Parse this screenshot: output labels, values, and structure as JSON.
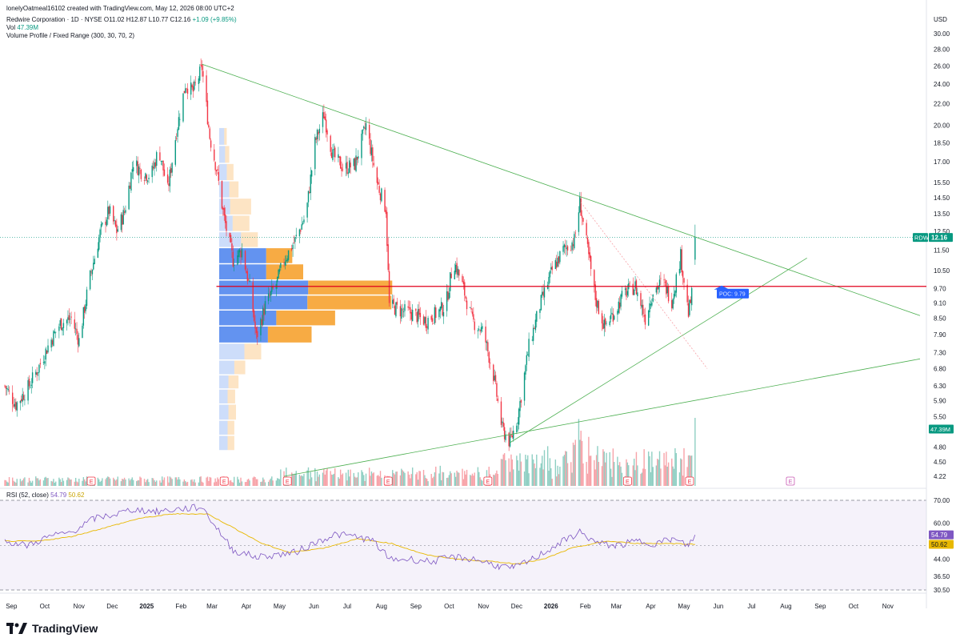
{
  "header": {
    "credit": "lonelyOatmeal16102 created with TradingView.com, May 12, 2026 08:00 UTC+2",
    "symbol_line": "Redwire Corporation · 1D · NYSE",
    "open": "O11.02",
    "high": "H12.87",
    "low": "L10.77",
    "close": "C12.16",
    "change": "+1.09 (+9.85%)",
    "vol_label": "Vol",
    "vol_value": "47.39M",
    "indicator": "Volume Profile / Fixed Range (300, 30, 70, 2)"
  },
  "rsi_header": {
    "label": "RSI (52, close)",
    "rsi": "54.79",
    "ma": "50.62"
  },
  "logo": {
    "text": "TradingView",
    "icon": "tradingview-logo-icon"
  },
  "colors": {
    "up": "#089981",
    "down": "#f23645",
    "up_vol": "#8fcfc3",
    "down_vol": "#f7a3a9",
    "poc": "#e0001b",
    "trend": "#4caf50",
    "rsi": "#7e57c2",
    "rsi_ma": "#e8b800",
    "vp_up": "#5b8def",
    "vp_down": "#f7a63a",
    "badge": "#2962ff"
  },
  "chart_data": [
    {
      "type": "candlestick",
      "title": "",
      "currency": "USD",
      "scale": "log",
      "y_ticks": [
        30.0,
        28.0,
        26.0,
        24.0,
        22.0,
        20.0,
        18.5,
        17.0,
        15.5,
        14.5,
        13.5,
        12.5,
        11.5,
        10.5,
        9.7,
        9.1,
        8.5,
        7.9,
        7.3,
        6.8,
        6.3,
        5.9,
        5.5,
        4.8,
        4.5,
        4.22
      ],
      "y_tick_labels": [
        "30.00",
        "28.00",
        "26.00",
        "24.00",
        "22.00",
        "20.00",
        "18.50",
        "17.00",
        "15.50",
        "14.50",
        "13.50",
        "12.50",
        "11.50",
        "10.50",
        "9.70",
        "9.10",
        "8.50",
        "7.90",
        "7.30",
        "6.80",
        "6.30",
        "5.90",
        "5.50",
        "4.80",
        "4.50",
        "4.22"
      ],
      "x_labels": [
        "Sep",
        "Oct",
        "Nov",
        "Dec",
        "2025",
        "Feb",
        "Mar",
        "Apr",
        "May",
        "Jun",
        "Jul",
        "Aug",
        "Sep",
        "Oct",
        "Nov",
        "Dec",
        "2026",
        "Feb",
        "Mar",
        "Apr",
        "May",
        "Jun",
        "Jul",
        "Aug",
        "Sep",
        "Oct",
        "Nov"
      ],
      "price_path": [
        [
          "2024-08-26",
          6.3
        ],
        [
          "2024-09-05",
          5.8
        ],
        [
          "2024-09-15",
          6.2
        ],
        [
          "2024-09-25",
          6.8
        ],
        [
          "2024-10-05",
          7.6
        ],
        [
          "2024-10-15",
          8.3
        ],
        [
          "2024-10-25",
          8.5
        ],
        [
          "2024-11-01",
          7.7
        ],
        [
          "2024-11-10",
          10.0
        ],
        [
          "2024-11-20",
          12.4
        ],
        [
          "2024-11-28",
          13.7
        ],
        [
          "2024-12-05",
          12.5
        ],
        [
          "2024-12-12",
          13.6
        ],
        [
          "2024-12-20",
          17.0
        ],
        [
          "2024-12-28",
          16.2
        ],
        [
          "2025-01-05",
          16.0
        ],
        [
          "2025-01-12",
          18.0
        ],
        [
          "2025-01-20",
          15.0
        ],
        [
          "2025-01-28",
          19.5
        ],
        [
          "2025-02-05",
          24.0
        ],
        [
          "2025-02-12",
          23.2
        ],
        [
          "2025-02-20",
          25.8
        ],
        [
          "2025-02-27",
          19.0
        ],
        [
          "2025-03-05",
          16.5
        ],
        [
          "2025-03-12",
          13.2
        ],
        [
          "2025-03-20",
          11.0
        ],
        [
          "2025-03-28",
          11.5
        ],
        [
          "2025-04-05",
          9.5
        ],
        [
          "2025-04-10",
          7.8
        ],
        [
          "2025-04-18",
          9.0
        ],
        [
          "2025-04-28",
          9.9
        ],
        [
          "2025-05-05",
          11.0
        ],
        [
          "2025-05-15",
          12.0
        ],
        [
          "2025-05-25",
          13.5
        ],
        [
          "2025-06-02",
          18.5
        ],
        [
          "2025-06-10",
          21.0
        ],
        [
          "2025-06-18",
          17.5
        ],
        [
          "2025-06-28",
          16.5
        ],
        [
          "2025-07-08",
          16.8
        ],
        [
          "2025-07-18",
          20.0
        ],
        [
          "2025-07-28",
          15.5
        ],
        [
          "2025-08-05",
          13.8
        ],
        [
          "2025-08-08",
          9.0
        ],
        [
          "2025-08-18",
          8.8
        ],
        [
          "2025-08-28",
          8.7
        ],
        [
          "2025-09-10",
          8.4
        ],
        [
          "2025-09-20",
          8.7
        ],
        [
          "2025-09-28",
          9.0
        ],
        [
          "2025-10-05",
          11.0
        ],
        [
          "2025-10-12",
          10.0
        ],
        [
          "2025-10-22",
          8.4
        ],
        [
          "2025-11-01",
          8.0
        ],
        [
          "2025-11-10",
          6.6
        ],
        [
          "2025-11-18",
          5.2
        ],
        [
          "2025-11-25",
          4.9
        ],
        [
          "2025-12-02",
          5.5
        ],
        [
          "2025-12-12",
          7.5
        ],
        [
          "2025-12-22",
          9.0
        ],
        [
          "2026-01-02",
          10.5
        ],
        [
          "2026-01-12",
          11.5
        ],
        [
          "2026-01-22",
          12.0
        ],
        [
          "2026-01-27",
          14.2
        ],
        [
          "2026-02-03",
          11.5
        ],
        [
          "2026-02-10",
          9.3
        ],
        [
          "2026-02-18",
          8.2
        ],
        [
          "2026-02-28",
          8.8
        ],
        [
          "2026-03-08",
          9.5
        ],
        [
          "2026-03-18",
          9.8
        ],
        [
          "2026-03-27",
          8.5
        ],
        [
          "2026-04-03",
          9.6
        ],
        [
          "2026-04-12",
          10.0
        ],
        [
          "2026-04-20",
          9.2
        ],
        [
          "2026-04-28",
          11.2
        ],
        [
          "2026-05-05",
          8.7
        ],
        [
          "2026-05-08",
          9.4
        ],
        [
          "2026-05-11",
          12.16
        ]
      ],
      "volume_last": "47.39M",
      "last_price": "12.16",
      "ticker": "RDW",
      "poc": {
        "label": "POC: 9.79",
        "value": 9.79
      },
      "earnings_marker": "E",
      "earnings_dates": [
        "2024-11-12",
        "2025-03-12",
        "2025-05-08",
        "2025-08-07",
        "2025-11-05",
        "2026-03-11",
        "2026-05-06",
        "2026-08-05"
      ],
      "trendlines": [
        {
          "from": [
            "2025-02-20",
            26.2
          ],
          "to": [
            "2026-11-30",
            8.6
          ]
        },
        {
          "from": [
            "2025-11-25",
            4.9
          ],
          "to": [
            "2026-08-20",
            11.1
          ]
        },
        {
          "from": [
            "2025-05-05",
            4.22
          ],
          "to": [
            "2026-11-30",
            7.1
          ]
        },
        {
          "from": [
            "2026-01-28",
            14.2
          ],
          "to": [
            "2026-05-22",
            6.8
          ],
          "dotted": true
        }
      ],
      "volume_profile": [
        {
          "price": 4.9,
          "up": 1.0,
          "down": 0.8
        },
        {
          "price": 5.2,
          "up": 1.0,
          "down": 0.8
        },
        {
          "price": 5.6,
          "up": 1.1,
          "down": 0.9
        },
        {
          "price": 6.0,
          "up": 1.0,
          "down": 0.9
        },
        {
          "price": 6.4,
          "up": 1.1,
          "down": 1.2
        },
        {
          "price": 6.8,
          "up": 1.8,
          "down": 1.3
        },
        {
          "price": 7.3,
          "up": 3.0,
          "down": 2.0
        },
        {
          "price": 7.9,
          "up": 5.8,
          "down": 5.2
        },
        {
          "price": 8.5,
          "up": 6.8,
          "down": 7.0
        },
        {
          "price": 9.1,
          "up": 10.5,
          "down": 10.0
        },
        {
          "price": 9.7,
          "up": 10.6,
          "down": 10.0
        },
        {
          "price": 10.4,
          "up": 5.6,
          "down": 4.4
        },
        {
          "price": 11.2,
          "up": 5.6,
          "down": 3.1
        },
        {
          "price": 12.0,
          "up": 2.6,
          "down": 2.0
        },
        {
          "price": 12.9,
          "up": 1.6,
          "down": 2.0
        },
        {
          "price": 13.9,
          "up": 1.3,
          "down": 2.5
        },
        {
          "price": 15.0,
          "up": 1.2,
          "down": 1.1
        },
        {
          "price": 16.2,
          "up": 0.9,
          "down": 0.8
        },
        {
          "price": 17.5,
          "up": 0.7,
          "down": 0.5
        },
        {
          "price": 19.0,
          "up": 0.6,
          "down": 0.3
        }
      ]
    },
    {
      "type": "line",
      "title": "RSI (52, close)",
      "y_ticks": [
        70.0,
        60.0,
        54.79,
        50.62,
        44.0,
        36.5,
        30.5
      ],
      "y_tick_labels": [
        "70.00",
        "60.00",
        "54.79",
        "50.62",
        "44.00",
        "36.50",
        "30.50"
      ],
      "bands": [
        70,
        30
      ],
      "series": [
        {
          "name": "RSI",
          "value": "54.79",
          "points": [
            [
              "2024-08-26",
              52
            ],
            [
              "2024-09-15",
              50
            ],
            [
              "2024-10-05",
              54
            ],
            [
              "2024-10-25",
              56
            ],
            [
              "2024-11-15",
              62
            ],
            [
              "2024-12-05",
              64
            ],
            [
              "2024-12-20",
              66
            ],
            [
              "2025-01-10",
              65
            ],
            [
              "2025-01-28",
              66
            ],
            [
              "2025-02-20",
              67
            ],
            [
              "2025-03-05",
              58
            ],
            [
              "2025-03-20",
              48
            ],
            [
              "2025-04-10",
              45
            ],
            [
              "2025-04-28",
              46
            ],
            [
              "2025-05-15",
              47
            ],
            [
              "2025-06-05",
              52
            ],
            [
              "2025-06-20",
              55
            ],
            [
              "2025-07-10",
              54
            ],
            [
              "2025-07-25",
              52
            ],
            [
              "2025-08-08",
              44
            ],
            [
              "2025-08-28",
              44
            ],
            [
              "2025-09-15",
              43
            ],
            [
              "2025-10-05",
              45
            ],
            [
              "2025-10-25",
              44
            ],
            [
              "2025-11-15",
              41
            ],
            [
              "2025-11-28",
              40
            ],
            [
              "2025-12-15",
              44
            ],
            [
              "2026-01-05",
              50
            ],
            [
              "2026-01-27",
              56
            ],
            [
              "2026-02-12",
              51
            ],
            [
              "2026-03-01",
              50
            ],
            [
              "2026-03-20",
              52
            ],
            [
              "2026-04-05",
              51
            ],
            [
              "2026-04-20",
              53
            ],
            [
              "2026-05-05",
              50
            ],
            [
              "2026-05-11",
              54.79
            ]
          ]
        },
        {
          "name": "MA",
          "value": "50.62",
          "points": [
            [
              "2024-08-26",
              52
            ],
            [
              "2024-09-25",
              52
            ],
            [
              "2024-10-25",
              54
            ],
            [
              "2024-11-25",
              58
            ],
            [
              "2024-12-25",
              62
            ],
            [
              "2025-01-25",
              64
            ],
            [
              "2025-02-25",
              64
            ],
            [
              "2025-03-20",
              58
            ],
            [
              "2025-04-15",
              51
            ],
            [
              "2025-05-10",
              47
            ],
            [
              "2025-06-10",
              49
            ],
            [
              "2025-07-10",
              53
            ],
            [
              "2025-08-10",
              51
            ],
            [
              "2025-09-10",
              46
            ],
            [
              "2025-10-10",
              44
            ],
            [
              "2025-11-10",
              43
            ],
            [
              "2025-12-01",
              42
            ],
            [
              "2025-12-25",
              44
            ],
            [
              "2026-01-20",
              49
            ],
            [
              "2026-02-20",
              52
            ],
            [
              "2026-03-20",
              51
            ],
            [
              "2026-04-20",
              51
            ],
            [
              "2026-05-11",
              50.62
            ]
          ]
        }
      ]
    }
  ]
}
